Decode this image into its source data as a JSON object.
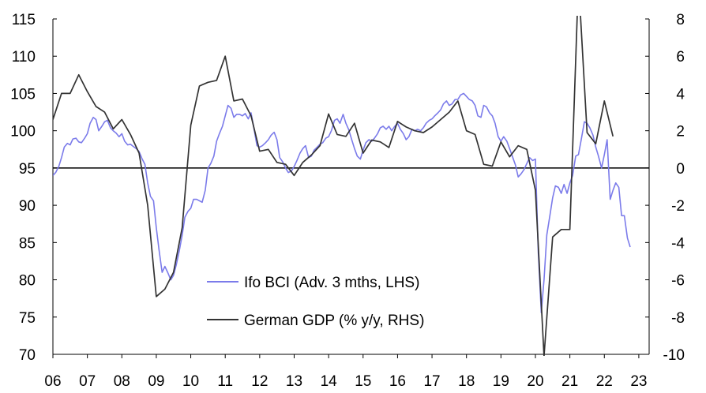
{
  "chart_data": {
    "type": "line",
    "title": "",
    "x_tick_labels": [
      "06",
      "07",
      "08",
      "09",
      "10",
      "11",
      "12",
      "13",
      "14",
      "15",
      "16",
      "17",
      "18",
      "19",
      "20",
      "21",
      "22",
      "23"
    ],
    "x_range": [
      2006.0,
      2023.3
    ],
    "left_axis": {
      "ylim": [
        70,
        115
      ],
      "ticks": [
        70,
        75,
        80,
        85,
        90,
        95,
        100,
        105,
        110,
        115
      ]
    },
    "right_axis": {
      "ylim": [
        -10,
        8
      ],
      "ticks": [
        -10,
        -8,
        -6,
        -4,
        -2,
        0,
        2,
        4,
        6,
        8
      ]
    },
    "reference_line": {
      "axis": "right",
      "value": 0
    },
    "series": [
      {
        "name": "Ifo BCI (Adv. 3 mths, LHS)",
        "axis": "left",
        "color": "#7b7bea",
        "points": [
          [
            2006.0,
            94.0
          ],
          [
            2006.08,
            94.4
          ],
          [
            2006.17,
            95.2
          ],
          [
            2006.25,
            96.4
          ],
          [
            2006.33,
            97.8
          ],
          [
            2006.42,
            98.3
          ],
          [
            2006.5,
            98.1
          ],
          [
            2006.58,
            98.9
          ],
          [
            2006.67,
            99.0
          ],
          [
            2006.75,
            98.5
          ],
          [
            2006.83,
            98.4
          ],
          [
            2006.92,
            99.0
          ],
          [
            2007.0,
            99.6
          ],
          [
            2007.08,
            101.0
          ],
          [
            2007.17,
            101.8
          ],
          [
            2007.25,
            101.5
          ],
          [
            2007.33,
            100.0
          ],
          [
            2007.42,
            100.6
          ],
          [
            2007.5,
            101.2
          ],
          [
            2007.58,
            101.4
          ],
          [
            2007.67,
            100.4
          ],
          [
            2007.75,
            100.0
          ],
          [
            2007.83,
            99.7
          ],
          [
            2007.92,
            99.2
          ],
          [
            2008.0,
            99.6
          ],
          [
            2008.08,
            98.6
          ],
          [
            2008.17,
            98.1
          ],
          [
            2008.25,
            98.2
          ],
          [
            2008.33,
            97.9
          ],
          [
            2008.42,
            97.6
          ],
          [
            2008.5,
            97.2
          ],
          [
            2008.58,
            96.3
          ],
          [
            2008.67,
            95.5
          ],
          [
            2008.75,
            93.0
          ],
          [
            2008.83,
            91.2
          ],
          [
            2008.92,
            90.6
          ],
          [
            2009.0,
            87.0
          ],
          [
            2009.08,
            84.0
          ],
          [
            2009.17,
            81.0
          ],
          [
            2009.25,
            81.8
          ],
          [
            2009.33,
            81.0
          ],
          [
            2009.42,
            80.0
          ],
          [
            2009.5,
            80.6
          ],
          [
            2009.58,
            82.0
          ],
          [
            2009.67,
            84.0
          ],
          [
            2009.75,
            86.0
          ],
          [
            2009.83,
            88.4
          ],
          [
            2009.92,
            89.2
          ],
          [
            2010.0,
            89.6
          ],
          [
            2010.08,
            90.8
          ],
          [
            2010.17,
            90.8
          ],
          [
            2010.25,
            90.6
          ],
          [
            2010.33,
            90.4
          ],
          [
            2010.42,
            92.0
          ],
          [
            2010.5,
            95.0
          ],
          [
            2010.58,
            95.6
          ],
          [
            2010.67,
            96.6
          ],
          [
            2010.75,
            98.6
          ],
          [
            2010.83,
            99.6
          ],
          [
            2010.92,
            100.6
          ],
          [
            2011.0,
            102.0
          ],
          [
            2011.08,
            103.4
          ],
          [
            2011.17,
            103.0
          ],
          [
            2011.25,
            101.8
          ],
          [
            2011.33,
            102.2
          ],
          [
            2011.42,
            102.2
          ],
          [
            2011.5,
            102.0
          ],
          [
            2011.58,
            102.3
          ],
          [
            2011.67,
            101.6
          ],
          [
            2011.75,
            102.4
          ],
          [
            2011.83,
            100.4
          ],
          [
            2011.92,
            98.0
          ],
          [
            2012.0,
            97.8
          ],
          [
            2012.08,
            98.0
          ],
          [
            2012.17,
            98.4
          ],
          [
            2012.25,
            98.8
          ],
          [
            2012.33,
            99.4
          ],
          [
            2012.42,
            99.8
          ],
          [
            2012.5,
            98.8
          ],
          [
            2012.58,
            96.4
          ],
          [
            2012.67,
            95.8
          ],
          [
            2012.75,
            95.0
          ],
          [
            2012.83,
            94.4
          ],
          [
            2012.92,
            94.6
          ],
          [
            2013.0,
            95.2
          ],
          [
            2013.08,
            96.0
          ],
          [
            2013.17,
            97.0
          ],
          [
            2013.25,
            97.6
          ],
          [
            2013.33,
            98.0
          ],
          [
            2013.42,
            96.4
          ],
          [
            2013.5,
            96.6
          ],
          [
            2013.58,
            97.4
          ],
          [
            2013.67,
            97.8
          ],
          [
            2013.75,
            98.2
          ],
          [
            2013.83,
            98.4
          ],
          [
            2013.92,
            99.0
          ],
          [
            2014.0,
            99.2
          ],
          [
            2014.08,
            100.0
          ],
          [
            2014.17,
            101.4
          ],
          [
            2014.25,
            101.6
          ],
          [
            2014.33,
            101.0
          ],
          [
            2014.42,
            102.2
          ],
          [
            2014.5,
            101.0
          ],
          [
            2014.58,
            100.2
          ],
          [
            2014.67,
            98.8
          ],
          [
            2014.75,
            97.6
          ],
          [
            2014.83,
            96.6
          ],
          [
            2014.92,
            96.2
          ],
          [
            2015.0,
            97.4
          ],
          [
            2015.08,
            98.4
          ],
          [
            2015.17,
            98.8
          ],
          [
            2015.25,
            98.6
          ],
          [
            2015.33,
            99.0
          ],
          [
            2015.42,
            99.6
          ],
          [
            2015.5,
            100.4
          ],
          [
            2015.58,
            100.6
          ],
          [
            2015.67,
            100.2
          ],
          [
            2015.75,
            100.6
          ],
          [
            2015.83,
            100.0
          ],
          [
            2015.92,
            100.6
          ],
          [
            2016.0,
            101.0
          ],
          [
            2016.08,
            100.2
          ],
          [
            2016.17,
            99.6
          ],
          [
            2016.25,
            98.8
          ],
          [
            2016.33,
            99.2
          ],
          [
            2016.42,
            100.2
          ],
          [
            2016.5,
            100.0
          ],
          [
            2016.58,
            100.2
          ],
          [
            2016.67,
            100.0
          ],
          [
            2016.75,
            100.4
          ],
          [
            2016.83,
            101.0
          ],
          [
            2016.92,
            101.4
          ],
          [
            2017.0,
            101.6
          ],
          [
            2017.08,
            102.0
          ],
          [
            2017.17,
            102.4
          ],
          [
            2017.25,
            102.8
          ],
          [
            2017.33,
            103.6
          ],
          [
            2017.42,
            104.0
          ],
          [
            2017.5,
            103.4
          ],
          [
            2017.58,
            103.6
          ],
          [
            2017.67,
            104.2
          ],
          [
            2017.75,
            104.2
          ],
          [
            2017.83,
            104.8
          ],
          [
            2017.92,
            105.0
          ],
          [
            2018.0,
            104.6
          ],
          [
            2018.08,
            104.2
          ],
          [
            2018.17,
            104.0
          ],
          [
            2018.25,
            103.4
          ],
          [
            2018.33,
            102.0
          ],
          [
            2018.42,
            101.8
          ],
          [
            2018.5,
            103.4
          ],
          [
            2018.58,
            103.2
          ],
          [
            2018.67,
            102.4
          ],
          [
            2018.75,
            102.0
          ],
          [
            2018.83,
            101.0
          ],
          [
            2018.92,
            99.2
          ],
          [
            2019.0,
            98.6
          ],
          [
            2019.08,
            99.2
          ],
          [
            2019.17,
            98.6
          ],
          [
            2019.25,
            97.6
          ],
          [
            2019.33,
            96.6
          ],
          [
            2019.42,
            95.4
          ],
          [
            2019.5,
            93.8
          ],
          [
            2019.58,
            94.2
          ],
          [
            2019.67,
            94.8
          ],
          [
            2019.75,
            95.6
          ],
          [
            2019.83,
            96.4
          ],
          [
            2019.92,
            96.0
          ],
          [
            2020.0,
            96.2
          ],
          [
            2020.08,
            84.0
          ],
          [
            2020.17,
            75.6
          ],
          [
            2020.25,
            80.0
          ],
          [
            2020.33,
            86.0
          ],
          [
            2020.42,
            88.6
          ],
          [
            2020.5,
            91.0
          ],
          [
            2020.58,
            92.6
          ],
          [
            2020.67,
            92.4
          ],
          [
            2020.75,
            91.6
          ],
          [
            2020.83,
            92.8
          ],
          [
            2020.92,
            91.6
          ],
          [
            2021.0,
            93.0
          ],
          [
            2021.08,
            94.0
          ],
          [
            2021.17,
            96.6
          ],
          [
            2021.25,
            96.8
          ],
          [
            2021.33,
            98.8
          ],
          [
            2021.42,
            101.2
          ],
          [
            2021.5,
            101.0
          ],
          [
            2021.58,
            100.4
          ],
          [
            2021.67,
            99.4
          ],
          [
            2021.75,
            97.8
          ],
          [
            2021.83,
            96.6
          ],
          [
            2021.92,
            95.0
          ],
          [
            2022.0,
            96.8
          ],
          [
            2022.08,
            98.8
          ],
          [
            2022.17,
            90.8
          ],
          [
            2022.25,
            92.0
          ],
          [
            2022.33,
            93.0
          ],
          [
            2022.42,
            92.4
          ],
          [
            2022.5,
            88.6
          ],
          [
            2022.58,
            88.6
          ],
          [
            2022.67,
            85.6
          ],
          [
            2022.75,
            84.4
          ]
        ]
      },
      {
        "name": "German GDP (% y/y, RHS)",
        "axis": "right",
        "color": "#333333",
        "points": [
          [
            2006.0,
            2.6
          ],
          [
            2006.25,
            4.0
          ],
          [
            2006.5,
            4.0
          ],
          [
            2006.75,
            5.0
          ],
          [
            2007.0,
            4.1
          ],
          [
            2007.25,
            3.3
          ],
          [
            2007.5,
            3.0
          ],
          [
            2007.75,
            2.1
          ],
          [
            2008.0,
            2.6
          ],
          [
            2008.25,
            1.8
          ],
          [
            2008.5,
            0.8
          ],
          [
            2008.75,
            -2.0
          ],
          [
            2009.0,
            -6.9
          ],
          [
            2009.25,
            -6.5
          ],
          [
            2009.5,
            -5.6
          ],
          [
            2009.75,
            -3.2
          ],
          [
            2010.0,
            2.3
          ],
          [
            2010.25,
            4.4
          ],
          [
            2010.5,
            4.6
          ],
          [
            2010.75,
            4.7
          ],
          [
            2011.0,
            6.0
          ],
          [
            2011.25,
            3.6
          ],
          [
            2011.5,
            3.7
          ],
          [
            2011.75,
            2.8
          ],
          [
            2012.0,
            0.9
          ],
          [
            2012.25,
            1.0
          ],
          [
            2012.5,
            0.3
          ],
          [
            2012.75,
            0.2
          ],
          [
            2013.0,
            -0.4
          ],
          [
            2013.25,
            0.3
          ],
          [
            2013.5,
            0.7
          ],
          [
            2013.75,
            1.2
          ],
          [
            2014.0,
            2.9
          ],
          [
            2014.25,
            1.8
          ],
          [
            2014.5,
            1.7
          ],
          [
            2014.75,
            2.4
          ],
          [
            2015.0,
            0.8
          ],
          [
            2015.25,
            1.5
          ],
          [
            2015.5,
            1.4
          ],
          [
            2015.75,
            1.1
          ],
          [
            2016.0,
            2.5
          ],
          [
            2016.25,
            2.2
          ],
          [
            2016.5,
            2.0
          ],
          [
            2016.75,
            1.9
          ],
          [
            2017.0,
            2.2
          ],
          [
            2017.25,
            2.6
          ],
          [
            2017.5,
            3.0
          ],
          [
            2017.75,
            3.6
          ],
          [
            2018.0,
            2.0
          ],
          [
            2018.25,
            1.8
          ],
          [
            2018.5,
            0.2
          ],
          [
            2018.75,
            0.1
          ],
          [
            2019.0,
            1.4
          ],
          [
            2019.25,
            0.6
          ],
          [
            2019.5,
            1.2
          ],
          [
            2019.75,
            1.0
          ],
          [
            2020.0,
            -1.2
          ],
          [
            2020.25,
            -10.1
          ],
          [
            2020.5,
            -3.7
          ],
          [
            2020.75,
            -3.3
          ],
          [
            2021.0,
            -3.3
          ],
          [
            2021.25,
            10.1
          ],
          [
            2021.5,
            1.9
          ],
          [
            2021.75,
            1.3
          ],
          [
            2022.0,
            3.6
          ],
          [
            2022.25,
            1.7
          ]
        ]
      }
    ],
    "legend": [
      {
        "label": "Ifo BCI (Adv. 3 mths, LHS)",
        "color": "#7b7bea",
        "placement": "lower-left"
      },
      {
        "label": "German GDP (% y/y, RHS)",
        "color": "#333333",
        "placement": "lower-left"
      }
    ]
  }
}
